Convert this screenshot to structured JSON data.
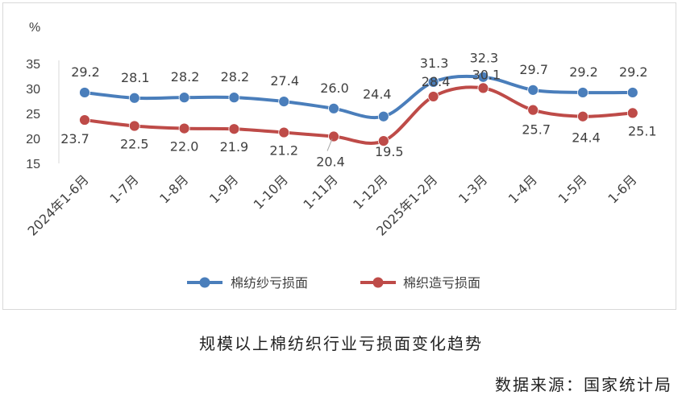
{
  "caption": "规模以上棉纺织行业亏损面变化趋势",
  "source": "数据来源：国家统计局",
  "chart_data": {
    "type": "line",
    "unit_label": "%",
    "categories": [
      "2024年1-6月",
      "1-7月",
      "1-8月",
      "1-9月",
      "1-10月",
      "1-11月",
      "1-12月",
      "2025年1-2月",
      "1-3月",
      "1-4月",
      "1-5月",
      "1-6月"
    ],
    "series": [
      {
        "name": "棉纺纱亏损面",
        "color": "#4a7ebb",
        "values": [
          29.2,
          28.1,
          28.2,
          28.2,
          27.4,
          26.0,
          24.4,
          31.3,
          32.3,
          29.7,
          29.2,
          29.2
        ]
      },
      {
        "name": "棉织造亏损面",
        "color": "#be4b48",
        "values": [
          23.7,
          22.5,
          22.0,
          21.9,
          21.2,
          20.4,
          19.5,
          28.4,
          30.1,
          25.7,
          24.4,
          25.1
        ]
      }
    ],
    "yticks": [
      15,
      20,
      25,
      30,
      35
    ],
    "ylim": [
      15,
      35
    ],
    "grid": false,
    "smooth": true,
    "legend_position": "bottom"
  }
}
